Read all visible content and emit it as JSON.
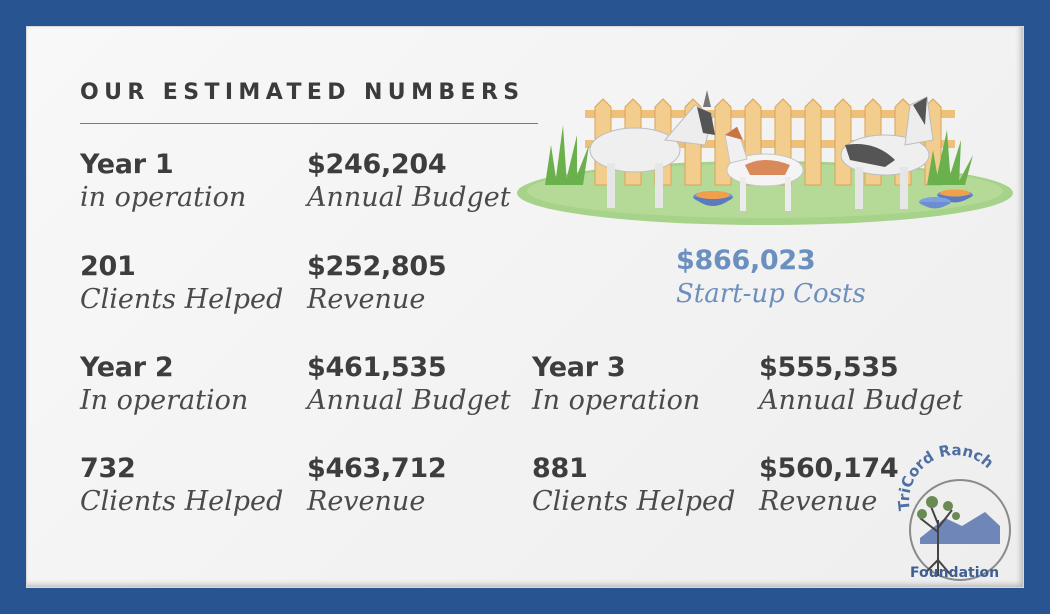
{
  "heading": "OUR ESTIMATED NUMBERS",
  "stats": {
    "y1_title": {
      "value": "Year 1",
      "label": "in operation"
    },
    "y1_budget": {
      "value": "$246,204",
      "label": "Annual Budget"
    },
    "y1_clients": {
      "value": "201",
      "label": "Clients Helped"
    },
    "y1_revenue": {
      "value": "$252,805",
      "label": "Revenue"
    },
    "startup": {
      "value": "$866,023",
      "label": "Start-up Costs"
    },
    "y2_title": {
      "value": "Year 2",
      "label": "In operation"
    },
    "y2_budget": {
      "value": "$461,535",
      "label": "Annual Budget"
    },
    "y2_clients": {
      "value": "732",
      "label": "Clients Helped"
    },
    "y2_revenue": {
      "value": "$463,712",
      "label": "Revenue"
    },
    "y3_title": {
      "value": "Year 3",
      "label": "In operation"
    },
    "y3_budget": {
      "value": "$555,535",
      "label": "Annual Budget"
    },
    "y3_clients": {
      "value": "881",
      "label": "Clients Helped"
    },
    "y3_revenue": {
      "value": "$560,174",
      "label": "Revenue"
    }
  },
  "logo": {
    "arc_text": "TriCord Ranch",
    "name": "Foundation"
  },
  "colors": {
    "frame": "#285491",
    "accent": "#6b8fbe",
    "text": "#3d3d3d"
  },
  "illustration": "goats-by-fence"
}
